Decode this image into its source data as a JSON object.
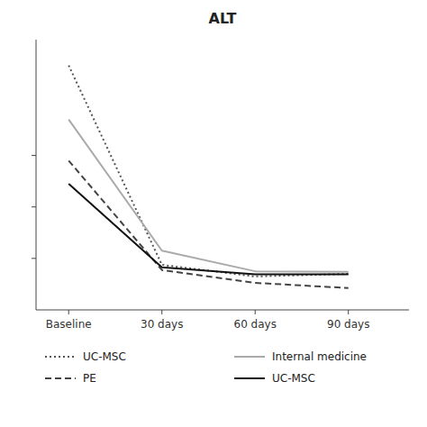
{
  "chart_data": {
    "type": "line",
    "title": "ALT",
    "categories": [
      "Baseline",
      "30 days",
      "60 days",
      "90 days"
    ],
    "series": [
      {
        "name": "UC-MSC",
        "color": "#555555",
        "line_style": "dotted",
        "values": [
          950,
          175,
          130,
          140
        ]
      },
      {
        "name": "Internal medicine",
        "color": "#aaaaaa",
        "line_style": "solid",
        "values": [
          740,
          230,
          150,
          148
        ]
      },
      {
        "name": "PE",
        "color": "#444444",
        "line_style": "dashed",
        "values": [
          580,
          155,
          105,
          85
        ]
      },
      {
        "name": "UC-MSC",
        "color": "#111111",
        "line_style": "solid",
        "values": [
          490,
          165,
          138,
          138
        ]
      }
    ],
    "ylim": [
      0,
      1050
    ],
    "yticks": [
      200,
      400,
      600
    ],
    "tick_labels": "x",
    "grid": false,
    "legend": "bottom"
  }
}
